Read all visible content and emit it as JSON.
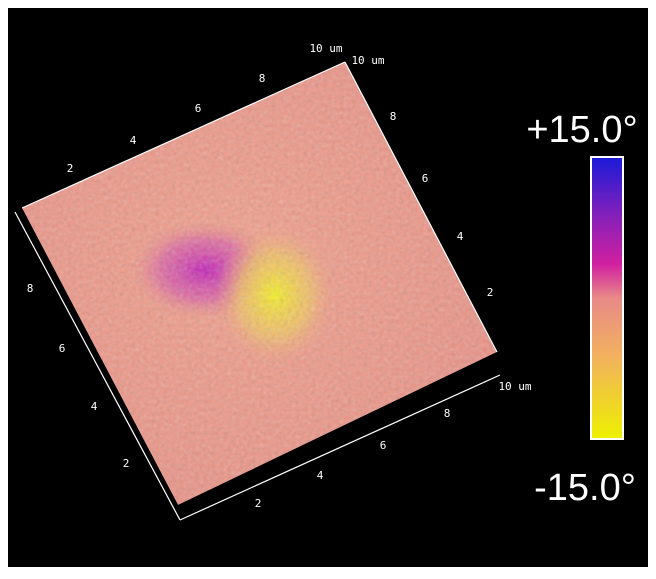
{
  "axes": [
    {
      "labels": [
        "2",
        "4",
        "6",
        "8",
        "10 um"
      ]
    },
    {
      "labels": [
        "10 um",
        "8",
        "6",
        "4",
        "2"
      ]
    },
    {
      "labels": [
        "8",
        "6",
        "4",
        "2"
      ]
    },
    {
      "labels": [
        "2",
        "4",
        "6",
        "8",
        "10 um"
      ]
    }
  ],
  "colorbar": {
    "max_label": "+15.0°",
    "min_label": "-15.0°"
  }
}
